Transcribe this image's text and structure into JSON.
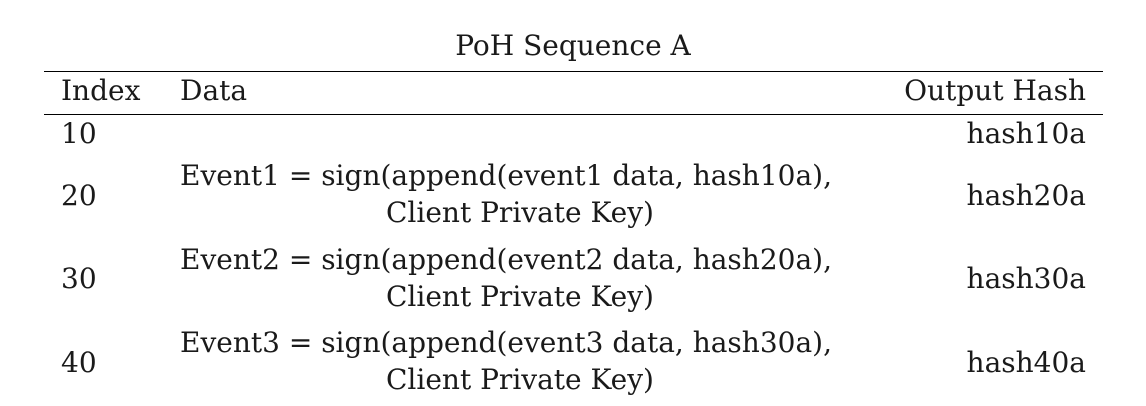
{
  "table": {
    "caption": "PoH Sequence A",
    "headers": {
      "index": "Index",
      "data": "Data",
      "output_hash": "Output Hash"
    },
    "rows": [
      {
        "index": "10",
        "data_line1": "",
        "data_line2": "",
        "hash": "hash10a"
      },
      {
        "index": "20",
        "data_line1": "Event1 = sign(append(event1 data, hash10a),",
        "data_line2": "Client Private Key)",
        "hash": "hash20a"
      },
      {
        "index": "30",
        "data_line1": "Event2 = sign(append(event2 data, hash20a),",
        "data_line2": "Client Private Key)",
        "hash": "hash30a"
      },
      {
        "index": "40",
        "data_line1": "Event3 = sign(append(event3 data, hash30a),",
        "data_line2": "Client Private Key)",
        "hash": "hash40a"
      }
    ]
  }
}
